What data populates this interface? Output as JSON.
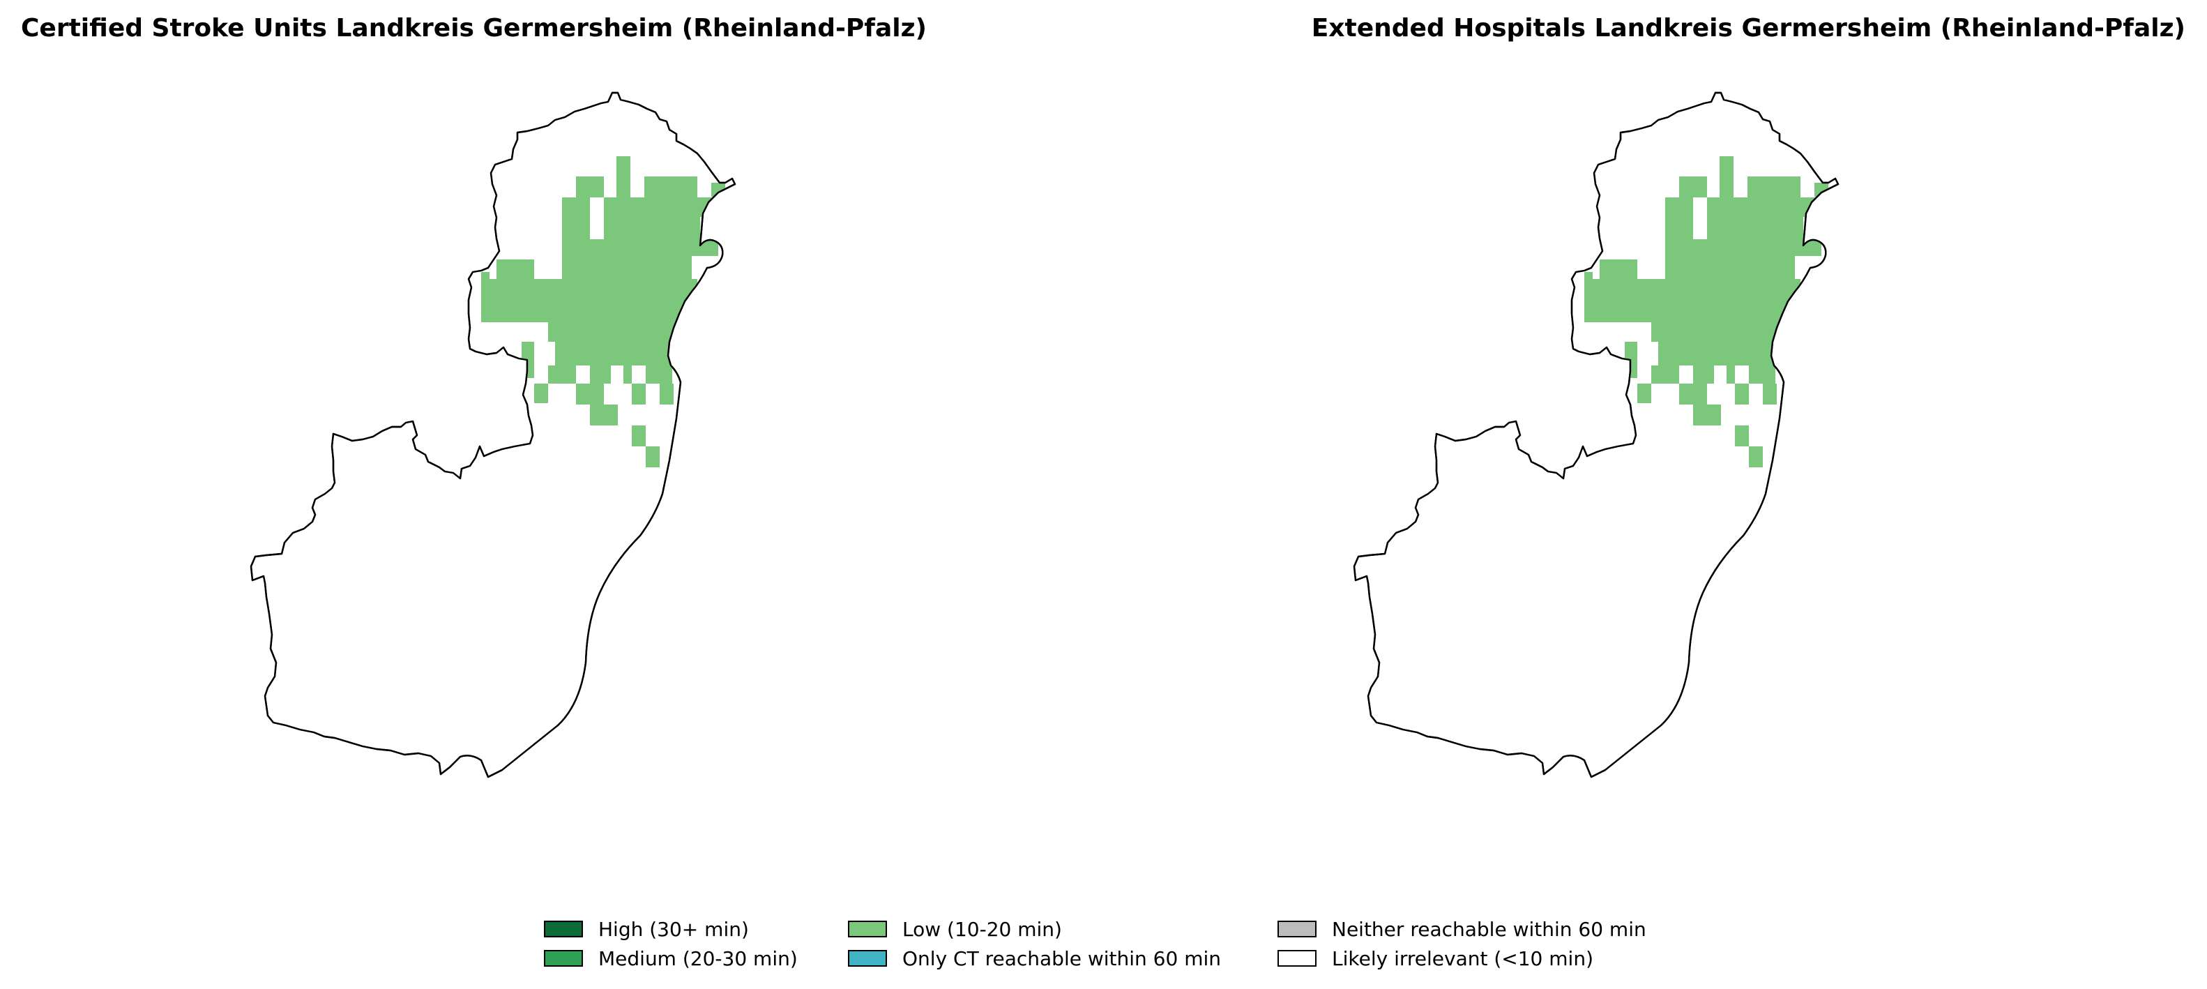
{
  "maps": [
    {
      "id": "left",
      "title": "Certified Stroke Units Landkreis Germersheim (Rheinland-Pfalz)"
    },
    {
      "id": "right",
      "title": "Extended Hospitals Landkreis Germersheim (Rheinland-Pfalz)"
    }
  ],
  "region_fill_color": "#ffffff",
  "boundary_color": "#000000",
  "legend": {
    "items": [
      {
        "label": "High (30+ min)",
        "color": "#0d6b3a"
      },
      {
        "label": "Medium (20-30 min)",
        "color": "#2ea154"
      },
      {
        "label": "Low (10-20 min)",
        "color": "#7bc87c"
      },
      {
        "label": "Only CT reachable within 60 min",
        "color": "#41b4c4"
      },
      {
        "label": "Neither reachable within 60 min",
        "color": "#bdbdbd"
      },
      {
        "label": "Likely irrelevant (<10 min)",
        "color": "#ffffff"
      }
    ]
  }
}
